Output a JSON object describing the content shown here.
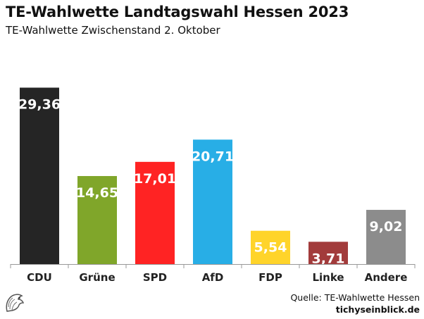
{
  "chart_data": {
    "type": "bar",
    "title": "TE-Wahlwette Landtagswahl Hessen 2023",
    "subtitle": "TE-Wahlwette Zwischenstand 2. Oktober",
    "categories": [
      "CDU",
      "Grüne",
      "SPD",
      "AfD",
      "FDP",
      "Linke",
      "Andere"
    ],
    "values": [
      29.36,
      14.65,
      17.01,
      20.71,
      5.54,
      3.71,
      9.02
    ],
    "value_labels": [
      "29,36",
      "14,65",
      "17,01",
      "20,71",
      "5,54",
      "3,71",
      "9,02"
    ],
    "colors": [
      "#252525",
      "#80a62a",
      "#ff2323",
      "#28aee6",
      "#ffd42a",
      "#a23b3b",
      "#8c8c8c"
    ],
    "label_colors": [
      "#ffffff",
      "#ffffff",
      "#ffffff",
      "#ffffff",
      "#ffffff",
      "#ffffff",
      "#ffffff"
    ],
    "ylim": [
      0,
      30
    ],
    "grid": false,
    "legend": "none"
  },
  "footer": {
    "source": "Quelle: TE-Wahlwette Hessen",
    "brand": "tichyseinblick.de"
  },
  "logo_icon": "eagle-head-icon"
}
